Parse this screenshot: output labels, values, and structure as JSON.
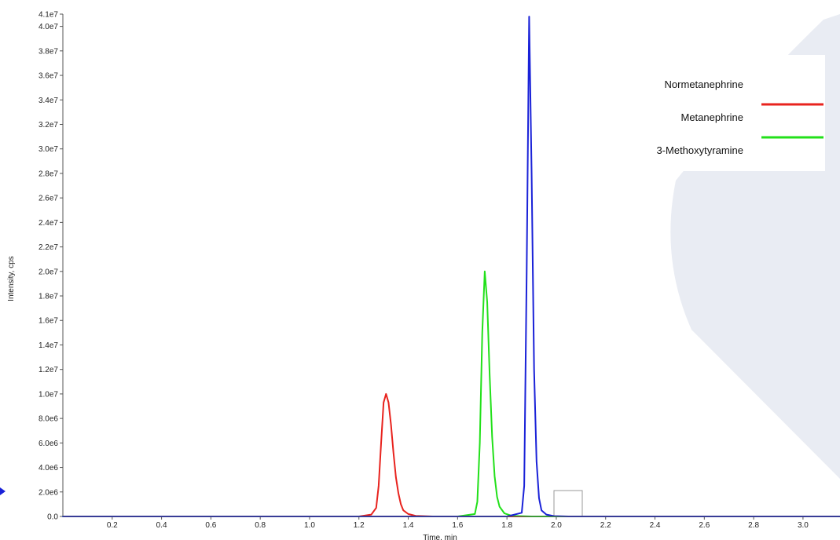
{
  "chart_data": {
    "type": "line",
    "xlabel": "Time, min",
    "ylabel": "Intensity, cps",
    "xlim": [
      0.0,
      3.15
    ],
    "ylim": [
      0,
      41000000
    ],
    "x_ticks": [
      "0.2",
      "0.4",
      "0.6",
      "0.8",
      "1.0",
      "1.2",
      "1.4",
      "1.6",
      "1.8",
      "2.0",
      "2.2",
      "2.4",
      "2.6",
      "2.8",
      "3.0"
    ],
    "y_ticks": [
      "0.0",
      "2.0e6",
      "4.0e6",
      "6.0e6",
      "8.0e6",
      "1.0e7",
      "1.2e7",
      "1.4e7",
      "1.6e7",
      "1.8e7",
      "2.0e7",
      "2.2e7",
      "2.4e7",
      "2.6e7",
      "2.8e7",
      "3.0e7",
      "3.2e7",
      "3.4e7",
      "3.6e7",
      "3.8e7",
      "4.0e7",
      "4.1e7"
    ],
    "series": [
      {
        "name": "Normetanephrine",
        "color": "#e8231e",
        "x": [
          1.0,
          1.2,
          1.25,
          1.27,
          1.28,
          1.29,
          1.3,
          1.31,
          1.32,
          1.33,
          1.34,
          1.35,
          1.36,
          1.37,
          1.38,
          1.4,
          1.43,
          1.5,
          3.15
        ],
        "y": [
          0,
          0,
          150000,
          700000,
          2500000,
          6000000,
          9300000,
          10000000,
          9300000,
          7500000,
          5200000,
          3200000,
          1900000,
          1000000,
          500000,
          200000,
          50000,
          0,
          0
        ]
      },
      {
        "name": "Metanephrine",
        "color": "#22e01a",
        "x": [
          0.0,
          1.6,
          1.67,
          1.68,
          1.69,
          1.7,
          1.71,
          1.72,
          1.73,
          1.74,
          1.75,
          1.76,
          1.77,
          1.79,
          1.82,
          1.9,
          3.15
        ],
        "y": [
          0,
          0,
          200000,
          1200000,
          6000000,
          15000000,
          20000000,
          17500000,
          11500000,
          6500000,
          3300000,
          1600000,
          800000,
          250000,
          50000,
          0,
          0
        ]
      },
      {
        "name": "3-Methoxytyramine",
        "color": "#1a22d8",
        "x": [
          0.0,
          1.8,
          1.86,
          1.87,
          1.88,
          1.89,
          1.9,
          1.91,
          1.92,
          1.93,
          1.94,
          1.96,
          1.99,
          2.05,
          3.15
        ],
        "y": [
          0,
          0,
          300000,
          2500000,
          20000000,
          40800000,
          28000000,
          12000000,
          4500000,
          1500000,
          500000,
          150000,
          30000,
          0,
          0
        ]
      }
    ],
    "legend": {
      "position": "top-right",
      "entries": [
        "Normetanephrine",
        "Metanephrine",
        "3-Methoxytyramine"
      ]
    }
  },
  "theme": {
    "axis_color": "#555555",
    "watermark_color": "#e9ecf3",
    "marker_color": "#1a22d8"
  }
}
